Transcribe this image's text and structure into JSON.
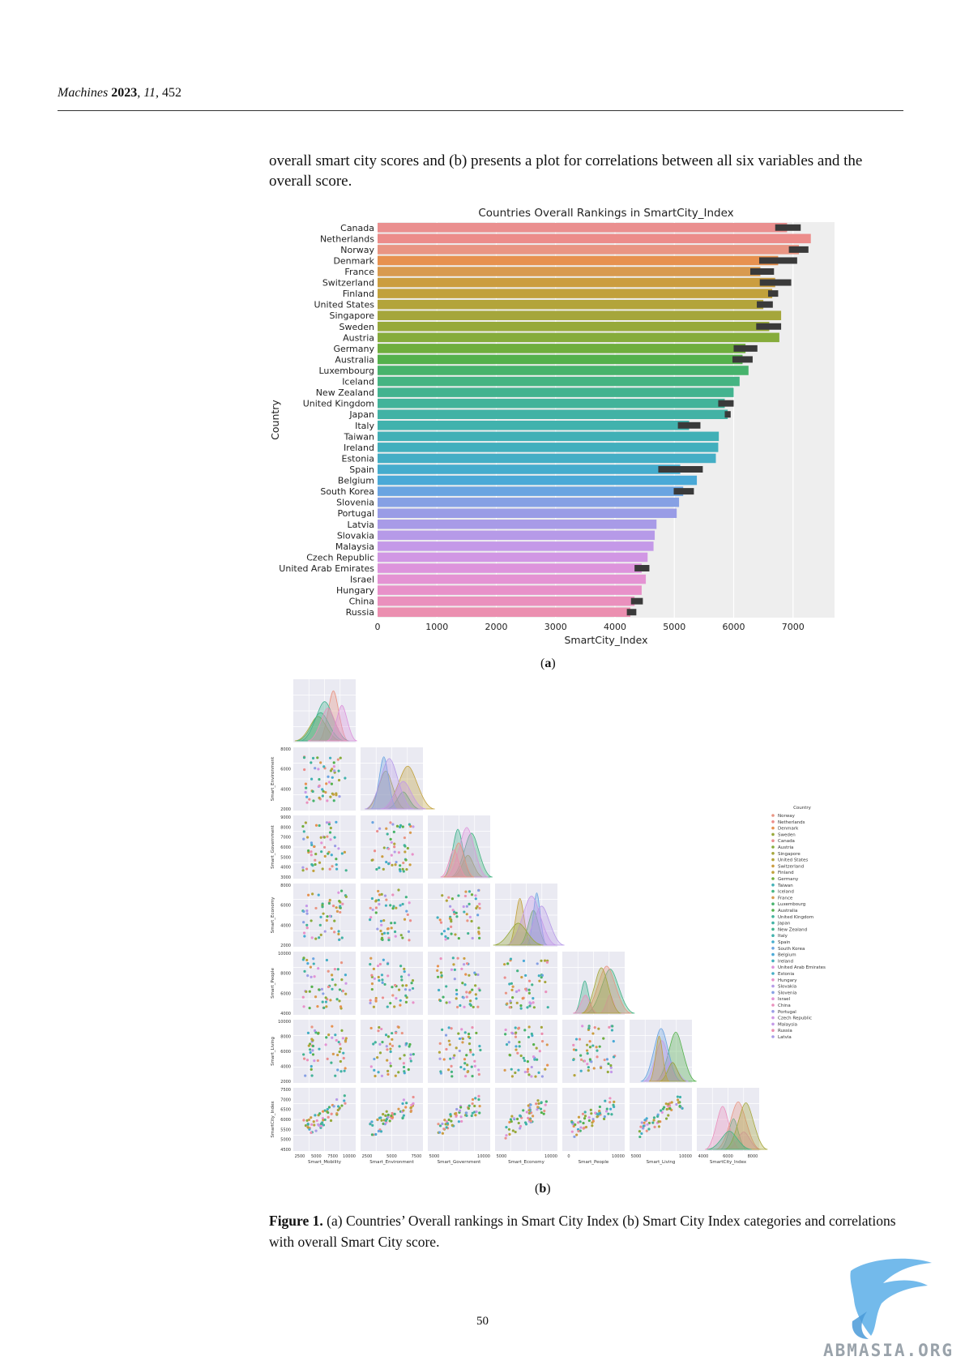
{
  "header": {
    "journal": "Machines",
    "year": "2023",
    "volume": "11",
    "article": "452"
  },
  "intro_text": "overall smart city scores and (b) presents a plot for correlations between all six variables and the overall score.",
  "chart_data": [
    {
      "type": "bar",
      "orientation": "horizontal",
      "title": "Countries Overall Rankings in SmartCity_Index",
      "xlabel": "SmartCity_Index",
      "ylabel": "Country",
      "xlim": [
        0,
        7700
      ],
      "xticks": [
        0,
        1000,
        2000,
        3000,
        4000,
        5000,
        6000,
        7000
      ],
      "grid": true,
      "categories": [
        "Canada",
        "Netherlands",
        "Norway",
        "Denmark",
        "France",
        "Switzerland",
        "Finland",
        "United States",
        "Singapore",
        "Sweden",
        "Austria",
        "Germany",
        "Australia",
        "Luxembourg",
        "Iceland",
        "New Zealand",
        "United Kingdom",
        "Japan",
        "Italy",
        "Taiwan",
        "Ireland",
        "Estonia",
        "Spain",
        "Belgium",
        "South Korea",
        "Slovenia",
        "Portugal",
        "Latvia",
        "Slovakia",
        "Malaysia",
        "Czech Republic",
        "United Arab Emirates",
        "Israel",
        "Hungary",
        "China",
        "Russia"
      ],
      "values": [
        6900,
        7300,
        7100,
        6750,
        6450,
        6700,
        6650,
        6500,
        6800,
        6600,
        6770,
        6200,
        6150,
        6250,
        6100,
        6000,
        5850,
        5900,
        5250,
        5750,
        5740,
        5700,
        5100,
        5380,
        5150,
        5080,
        5040,
        4700,
        4670,
        4650,
        4550,
        4450,
        4520,
        4450,
        4330,
        4260
      ],
      "ci": [
        [
          6700,
          7130
        ],
        null,
        [
          6930,
          7260
        ],
        [
          6430,
          7070
        ],
        [
          6280,
          6680
        ],
        [
          6440,
          6970
        ],
        [
          6580,
          6750
        ],
        [
          6390,
          6660
        ],
        null,
        [
          6380,
          6800
        ],
        null,
        [
          6000,
          6400
        ],
        [
          5980,
          6320
        ],
        null,
        null,
        null,
        [
          5740,
          6000
        ],
        [
          5850,
          5950
        ],
        [
          5060,
          5440
        ],
        null,
        null,
        null,
        [
          4730,
          5480
        ],
        null,
        [
          4990,
          5330
        ],
        null,
        null,
        null,
        null,
        null,
        null,
        [
          4330,
          4580
        ],
        null,
        null,
        [
          4270,
          4470
        ],
        [
          4200,
          4360
        ]
      ],
      "colors": [
        "#ea8f8f",
        "#ec8c8a",
        "#e99583",
        "#e7914f",
        "#d89a4f",
        "#cb9d3f",
        "#c1a13c",
        "#b3a43b",
        "#a5a63b",
        "#97a93b",
        "#86ac3b",
        "#6fae3d",
        "#54b14c",
        "#47b36c",
        "#45b482",
        "#43b38f",
        "#42b39a",
        "#42b2a5",
        "#41b2ad",
        "#41b0b6",
        "#42afbd",
        "#44aec5",
        "#45accd",
        "#4aa9d7",
        "#6aa4e1",
        "#86a0e4",
        "#999ce6",
        "#a89be7",
        "#b69ae8",
        "#c499e8",
        "#d197e4",
        "#dd94dc",
        "#e493d3",
        "#e891c9",
        "#ea90bd",
        "#eb8fb0"
      ]
    },
    {
      "type": "scatter",
      "kind": "pairplot",
      "variables": [
        "Smart_Mobility",
        "Smart_Environment",
        "Smart_Government",
        "Smart_Economy",
        "Smart_People",
        "Smart_Living",
        "SmartCity_Index"
      ],
      "row_labels": [
        "Smart_Environment",
        "Smart_Government",
        "Smart_Economy",
        "Smart_People",
        "Smart_Living",
        "SmartCity_Index"
      ],
      "row_ticks": [
        [
          "2000",
          "4000",
          "6000",
          "8000"
        ],
        [
          "3000",
          "4000",
          "5000",
          "6000",
          "7000",
          "8000",
          "9000"
        ],
        [
          "2000",
          "4000",
          "6000",
          "8000"
        ],
        [
          "4000",
          "6000",
          "8000",
          "10000"
        ],
        [
          "2000",
          "4000",
          "6000",
          "8000",
          "10000"
        ],
        [
          "4500",
          "5000",
          "5500",
          "6000",
          "6500",
          "7000",
          "7500"
        ]
      ],
      "col_ticks": [
        [
          "2500",
          "5000",
          "7500",
          "10000"
        ],
        [
          "2500",
          "5000",
          "7500"
        ],
        [
          "5000",
          "10000"
        ],
        [
          "5000",
          "10000"
        ],
        [
          "0",
          "10000"
        ],
        [
          "5000",
          "10000"
        ],
        [
          "4000",
          "6000",
          "8000"
        ]
      ],
      "legend_title": "Country",
      "legend_entries": [
        "Norway",
        "Netherlands",
        "Denmark",
        "Sweden",
        "Canada",
        "Austria",
        "Singapore",
        "United States",
        "Switzerland",
        "Finland",
        "Germany",
        "Taiwan",
        "Iceland",
        "France",
        "Luxembourg",
        "Australia",
        "United Kingdom",
        "Japan",
        "New Zealand",
        "Italy",
        "Spain",
        "South Korea",
        "Belgium",
        "Ireland",
        "United Arab Emirates",
        "Estonia",
        "Hungary",
        "Slovakia",
        "Slovenia",
        "Israel",
        "China",
        "Portugal",
        "Czech Republic",
        "Malaysia",
        "Russia",
        "Latvia"
      ],
      "legend_colors": [
        "#e99583",
        "#ec8c8a",
        "#e7914f",
        "#97a93b",
        "#ea8f8f",
        "#86ac3b",
        "#a5a63b",
        "#b3a43b",
        "#cb9d3f",
        "#c1a13c",
        "#6fae3d",
        "#41b0b6",
        "#45b482",
        "#d89a4f",
        "#47b36c",
        "#54b14c",
        "#42b39a",
        "#42b2a5",
        "#43b38f",
        "#41b2ad",
        "#45accd",
        "#6aa4e1",
        "#4aa9d7",
        "#42afbd",
        "#dd94dc",
        "#44aec5",
        "#e891c9",
        "#b69ae8",
        "#86a0e4",
        "#e493d3",
        "#ea90bd",
        "#999ce6",
        "#d197e4",
        "#c499e8",
        "#eb8fb0",
        "#a89be7"
      ]
    }
  ],
  "labels": {
    "a": "(a)",
    "b": "(b)"
  },
  "caption": {
    "fig": "Figure 1.",
    "text": " (a) Countries’ Overall rankings in Smart City Index (b) Smart City Index categories and correlations with overall Smart City score."
  },
  "page_number": "50",
  "watermark": "ABMASIA.ORG"
}
